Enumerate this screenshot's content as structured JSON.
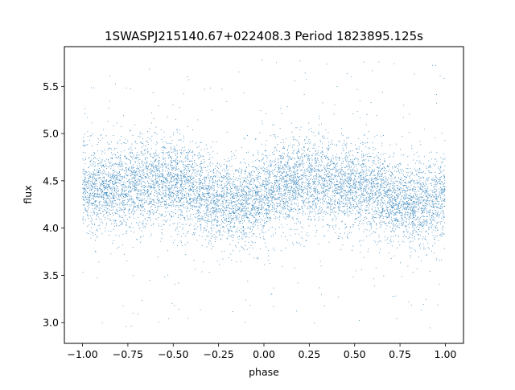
{
  "chart_data": {
    "type": "scatter",
    "title": "1SWASPJ215140.67+022408.3 Period 1823895.125s",
    "xlabel": "phase",
    "ylabel": "flux",
    "xlim": [
      -1.1,
      1.1
    ],
    "ylim": [
      2.78,
      5.92
    ],
    "x_ticks": [
      -1.0,
      -0.75,
      -0.5,
      -0.25,
      0.0,
      0.25,
      0.5,
      0.75,
      1.0
    ],
    "x_tick_labels": [
      "−1.00",
      "−0.75",
      "−0.50",
      "−0.25",
      "0.00",
      "0.25",
      "0.50",
      "0.75",
      "1.00"
    ],
    "y_ticks": [
      3.0,
      3.5,
      4.0,
      4.5,
      5.0,
      5.5
    ],
    "y_tick_labels": [
      "3.0",
      "3.5",
      "4.0",
      "4.5",
      "5.0",
      "5.5"
    ],
    "grid": false,
    "legend": "none",
    "point_color": "#1f77b4",
    "series": [
      {
        "x_range": [
          -1.0,
          1.0
        ],
        "x_step": 0.1,
        "median_flux": [
          4.45,
          4.42,
          4.44,
          4.46,
          4.5,
          4.48,
          4.4,
          4.3,
          4.28,
          4.25,
          4.35,
          4.45,
          4.48,
          4.5,
          4.46,
          4.44,
          4.42,
          4.32,
          4.28,
          4.25,
          4.4
        ],
        "core_spread": 0.22,
        "outlier_range": [
          2.92,
          5.78
        ]
      }
    ]
  }
}
